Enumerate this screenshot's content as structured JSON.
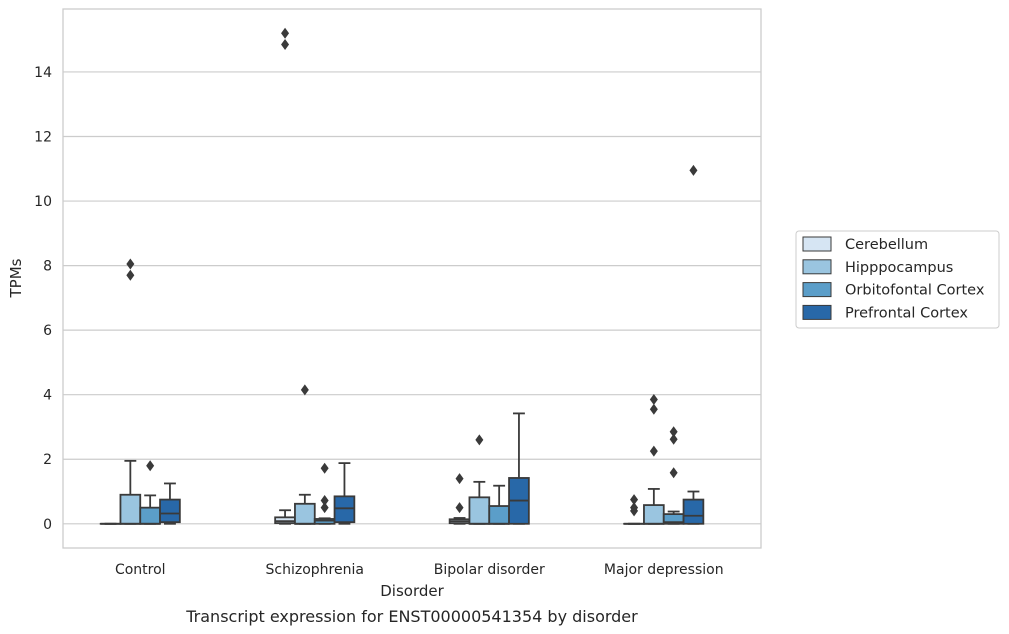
{
  "chart_data": {
    "type": "box",
    "caption": "Transcript expression for ENST00000541354 by disorder",
    "xlabel": "Disorder",
    "ylabel": "TPMs",
    "ylim": [
      -0.75,
      15.95
    ],
    "yticks": [
      0,
      2,
      4,
      6,
      8,
      10,
      12,
      14
    ],
    "grid": true,
    "legend_position": "right",
    "categories": [
      "Control",
      "Schizophrenia",
      "Bipolar disorder",
      "Major depression"
    ],
    "series": [
      {
        "name": "Cerebellum",
        "color": "#d6e5f3",
        "boxes": [
          {
            "whislo": 0,
            "q1": 0,
            "med": 0,
            "q3": 0,
            "whishi": 0,
            "fliers": []
          },
          {
            "whislo": 0,
            "q1": 0.02,
            "med": 0.08,
            "q3": 0.2,
            "whishi": 0.42,
            "fliers": [
              14.85,
              15.2
            ]
          },
          {
            "whislo": 0,
            "q1": 0.02,
            "med": 0.08,
            "q3": 0.14,
            "whishi": 0.18,
            "fliers": [
              0.5,
              1.4
            ]
          },
          {
            "whislo": 0,
            "q1": 0,
            "med": 0,
            "q3": 0,
            "whishi": 0,
            "fliers": [
              0.4,
              0.5,
              0.75
            ]
          }
        ]
      },
      {
        "name": "Hipppocampus",
        "color": "#9ac5e0",
        "boxes": [
          {
            "whislo": 0,
            "q1": 0,
            "med": 0,
            "q3": 0.9,
            "whishi": 1.95,
            "fliers": [
              7.7,
              8.05
            ]
          },
          {
            "whislo": 0,
            "q1": 0,
            "med": 0,
            "q3": 0.62,
            "whishi": 0.9,
            "fliers": [
              4.15
            ]
          },
          {
            "whislo": 0,
            "q1": 0,
            "med": 0,
            "q3": 0.82,
            "whishi": 1.3,
            "fliers": [
              2.6
            ]
          },
          {
            "whislo": 0,
            "q1": 0,
            "med": 0,
            "q3": 0.58,
            "whishi": 1.08,
            "fliers": [
              2.25,
              3.55,
              3.85
            ]
          }
        ]
      },
      {
        "name": "Orbitofontal Cortex",
        "color": "#5b9ec9",
        "boxes": [
          {
            "whislo": 0,
            "q1": 0,
            "med": 0,
            "q3": 0.5,
            "whishi": 0.88,
            "fliers": [
              1.8
            ]
          },
          {
            "whislo": 0,
            "q1": 0,
            "med": 0.1,
            "q3": 0.15,
            "whishi": 0.17,
            "fliers": [
              0.5,
              0.72,
              1.72
            ]
          },
          {
            "whislo": 0,
            "q1": 0,
            "med": 0,
            "q3": 0.55,
            "whishi": 1.18,
            "fliers": []
          },
          {
            "whislo": 0,
            "q1": 0,
            "med": 0.05,
            "q3": 0.3,
            "whishi": 0.38,
            "fliers": [
              1.58,
              2.62,
              2.85
            ]
          }
        ]
      },
      {
        "name": "Prefrontal Cortex",
        "color": "#2868a8",
        "boxes": [
          {
            "whislo": 0,
            "q1": 0.05,
            "med": 0.32,
            "q3": 0.75,
            "whishi": 1.25,
            "fliers": []
          },
          {
            "whislo": 0,
            "q1": 0.05,
            "med": 0.48,
            "q3": 0.85,
            "whishi": 1.88,
            "fliers": []
          },
          {
            "whislo": 0,
            "q1": 0,
            "med": 0.72,
            "q3": 1.42,
            "whishi": 3.42,
            "fliers": []
          },
          {
            "whislo": 0,
            "q1": 0,
            "med": 0.25,
            "q3": 0.75,
            "whishi": 1.0,
            "fliers": [
              10.95
            ]
          }
        ]
      }
    ]
  }
}
